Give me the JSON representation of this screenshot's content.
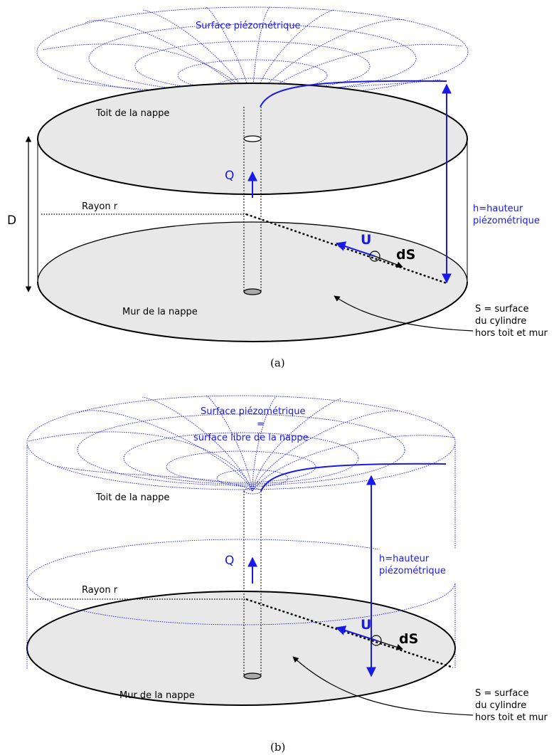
{
  "colors": {
    "piezo_blue": "#1a1ae6",
    "floor_fill": "#e8e8e8",
    "line": "#000000"
  },
  "panel_a": {
    "surface_label": "Surface piézométrique",
    "roof_label": "Toit de la nappe",
    "floor_label": "Mur de la nappe",
    "radius_label": "Rayon r",
    "flow_label": "Q",
    "thickness_label": "D",
    "head_label_line1": "h=hauteur",
    "head_label_line2": "piézométrique",
    "velocity_label": "U",
    "element_label": "dS",
    "surface_note_line1": "S = surface",
    "surface_note_line2": "du cylindre",
    "surface_note_line3": "hors toit et mur",
    "caption": "(a)"
  },
  "panel_b": {
    "surface_label_line1": "Surface piézométrique",
    "surface_label_line2": "=",
    "surface_label_line3": "surface libre de la nappe",
    "roof_label": "Toit de la nappe",
    "floor_label": "Mur de la nappe",
    "radius_label": "Rayon r",
    "flow_label": "Q",
    "head_label_line1": "h=hauteur",
    "head_label_line2": "piézométrique",
    "velocity_label": "U",
    "element_label": "dS",
    "surface_note_line1": "S = surface",
    "surface_note_line2": "du cylindre",
    "surface_note_line3": "hors toit et mur",
    "caption": "(b)"
  }
}
